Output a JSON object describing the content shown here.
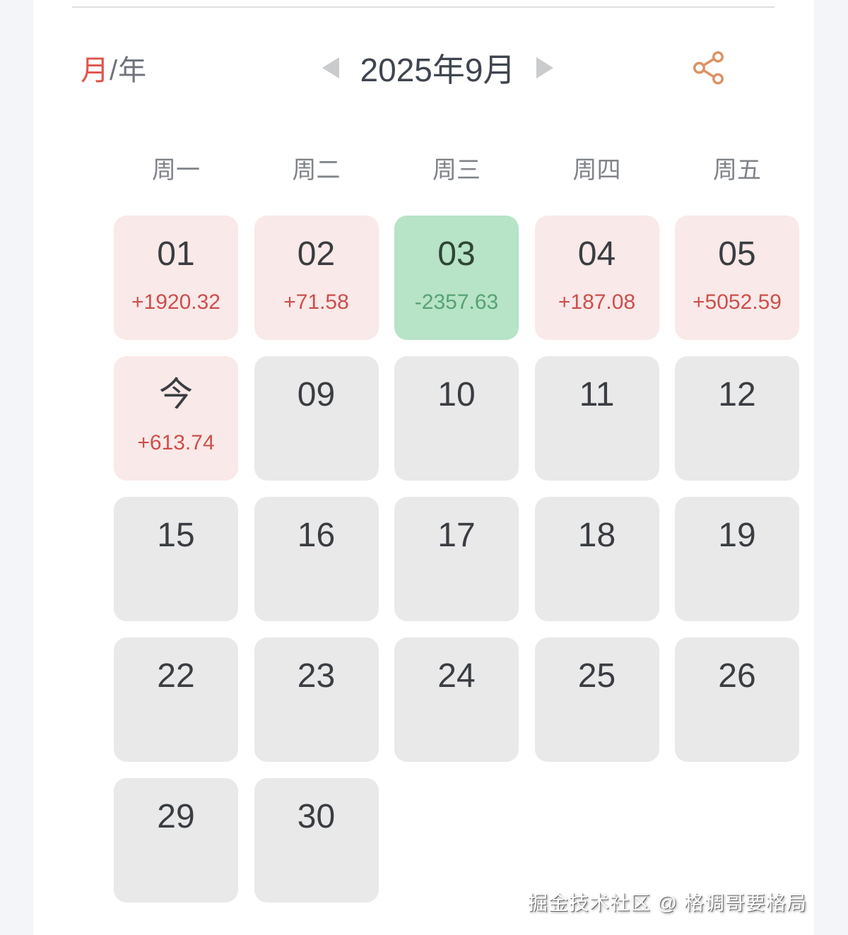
{
  "view_switcher": {
    "month": "月",
    "separator": "/",
    "year": "年"
  },
  "header": {
    "title": "2025年9月"
  },
  "weekdays": [
    "周一",
    "周二",
    "周三",
    "周四",
    "周五"
  ],
  "calendar": {
    "cells": [
      {
        "day": "01",
        "amount": "+1920.32",
        "state": "profit"
      },
      {
        "day": "02",
        "amount": "+71.58",
        "state": "profit"
      },
      {
        "day": "03",
        "amount": "-2357.63",
        "state": "loss"
      },
      {
        "day": "04",
        "amount": "+187.08",
        "state": "profit"
      },
      {
        "day": "05",
        "amount": "+5052.59",
        "state": "profit"
      },
      {
        "day": "今",
        "amount": "+613.74",
        "state": "profit",
        "today": true
      },
      {
        "day": "09",
        "state": "plain"
      },
      {
        "day": "10",
        "state": "plain"
      },
      {
        "day": "11",
        "state": "plain"
      },
      {
        "day": "12",
        "state": "plain"
      },
      {
        "day": "15",
        "state": "plain"
      },
      {
        "day": "16",
        "state": "plain"
      },
      {
        "day": "17",
        "state": "plain"
      },
      {
        "day": "18",
        "state": "plain"
      },
      {
        "day": "19",
        "state": "plain"
      },
      {
        "day": "22",
        "state": "plain"
      },
      {
        "day": "23",
        "state": "plain"
      },
      {
        "day": "24",
        "state": "plain"
      },
      {
        "day": "25",
        "state": "plain"
      },
      {
        "day": "26",
        "state": "plain"
      },
      {
        "day": "29",
        "state": "plain"
      },
      {
        "day": "30",
        "state": "plain"
      },
      null,
      null,
      null
    ]
  },
  "icons": {
    "prev": "left-arrow-icon",
    "next": "right-arrow-icon",
    "share": "share-icon"
  },
  "colors": {
    "page_bg": "#f4f5f8",
    "card_bg": "#ffffff",
    "divider": "#dfdfe2",
    "accent_red": "#e0544b",
    "muted_dark": "#6e737b",
    "title": "#3f4550",
    "arrow": "#c9cbcd",
    "weekday": "#808489",
    "day": "#3a3d41",
    "neutral_bg": "#e9e9ea",
    "profit_bg": "#f9e9e8",
    "profit_text": "#cc4f4c",
    "loss_bg": "#b7e3c6",
    "loss_day": "#2e4636",
    "loss_text": "#57a273",
    "share_icon": "#dd9266"
  },
  "watermark": "掘金技术社区 @ 格调哥要格局"
}
